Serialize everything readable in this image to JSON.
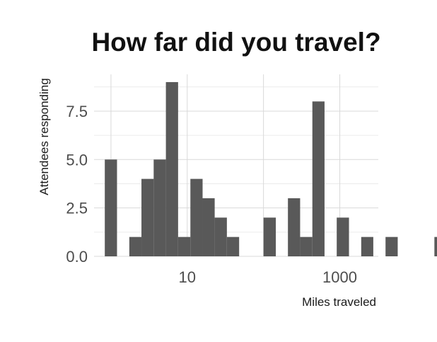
{
  "chart_data": {
    "type": "histogram",
    "title": "How far did you travel?",
    "xlabel": "Miles traveled",
    "ylabel": "Attendees responding",
    "x_scale": "log10",
    "x_range_miles": [
      0.6,
      3200
    ],
    "ylim": [
      0,
      9.4
    ],
    "y_ticks": [
      0.0,
      2.5,
      5.0,
      7.5
    ],
    "y_tick_labels": [
      "0.0",
      "2.5",
      "5.0",
      "7.5"
    ],
    "x_ticks": [
      10,
      1000
    ],
    "x_tick_labels": [
      "10",
      "1000"
    ],
    "x_minor_gridlines": [
      1,
      100
    ],
    "grid": true,
    "bar_color": "#595959",
    "bins": [
      {
        "from": 0.83,
        "to": 1.2,
        "count": 5
      },
      {
        "from": 1.2,
        "to": 1.74,
        "count": 0
      },
      {
        "from": 1.74,
        "to": 2.51,
        "count": 1
      },
      {
        "from": 2.51,
        "to": 3.63,
        "count": 4
      },
      {
        "from": 3.63,
        "to": 5.25,
        "count": 5
      },
      {
        "from": 5.25,
        "to": 7.59,
        "count": 9
      },
      {
        "from": 7.59,
        "to": 11.0,
        "count": 1
      },
      {
        "from": 11.0,
        "to": 15.9,
        "count": 4
      },
      {
        "from": 15.9,
        "to": 22.9,
        "count": 3
      },
      {
        "from": 22.9,
        "to": 33.1,
        "count": 2
      },
      {
        "from": 33.1,
        "to": 47.9,
        "count": 1
      },
      {
        "from": 47.9,
        "to": 69.2,
        "count": 0
      },
      {
        "from": 69.2,
        "to": 100,
        "count": 0
      },
      {
        "from": 100,
        "to": 145,
        "count": 2
      },
      {
        "from": 145,
        "to": 209,
        "count": 0
      },
      {
        "from": 209,
        "to": 302,
        "count": 3
      },
      {
        "from": 302,
        "to": 437,
        "count": 1
      },
      {
        "from": 437,
        "to": 631,
        "count": 8
      },
      {
        "from": 631,
        "to": 912,
        "count": 0
      },
      {
        "from": 912,
        "to": 1320,
        "count": 2
      },
      {
        "from": 1320,
        "to": 1910,
        "count": 0
      },
      {
        "from": 1910,
        "to": 2750,
        "count": 1
      },
      {
        "from": 2750,
        "to": 3980,
        "count": 0
      },
      {
        "from": 3980,
        "to": 5750,
        "count": 1
      },
      {
        "from": 5750,
        "to": 8320,
        "count": 0
      },
      {
        "from": 8320,
        "to": 12000,
        "count": 0
      },
      {
        "from": 12000,
        "to": 17400,
        "count": 0
      },
      {
        "from": 17400,
        "to": 25100,
        "count": 1
      }
    ]
  }
}
